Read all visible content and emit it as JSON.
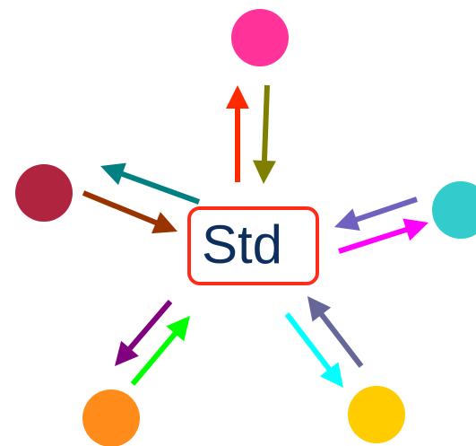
{
  "center": {
    "label": "Std"
  }
}
